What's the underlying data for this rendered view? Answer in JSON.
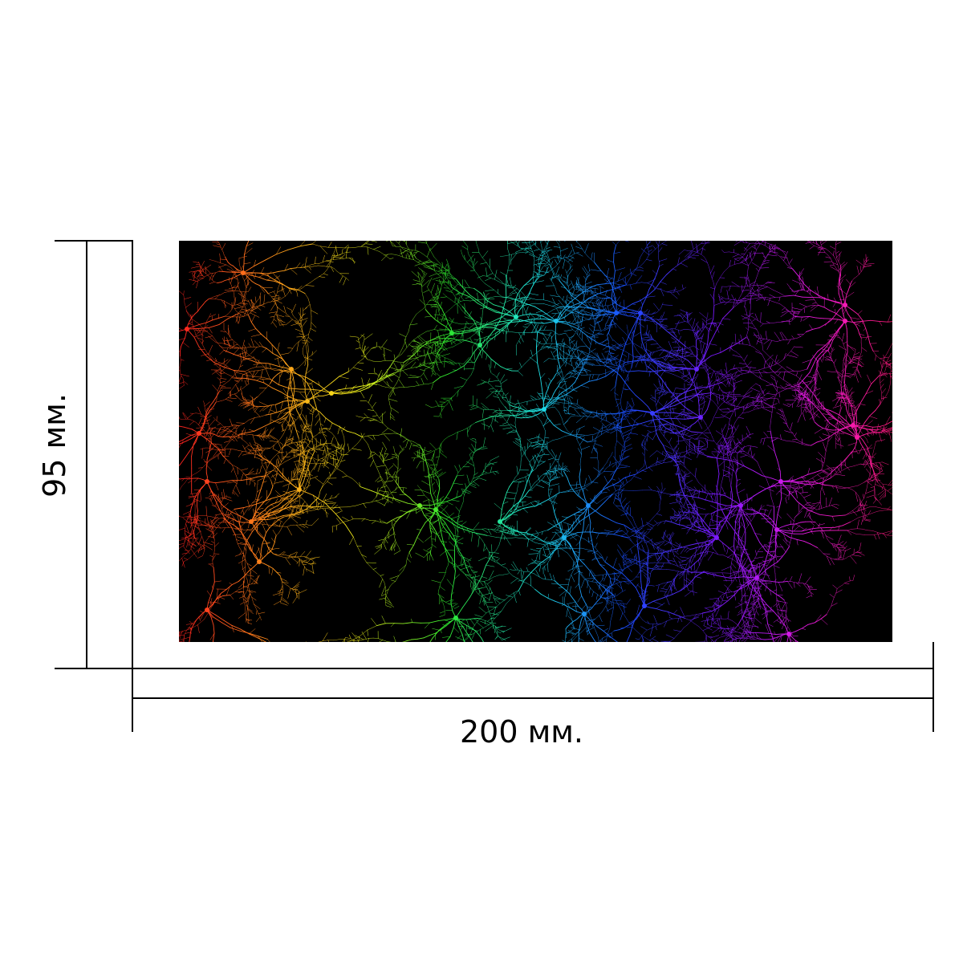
{
  "dimensions": {
    "width_label": "200 мм.",
    "height_label": "95 мм."
  },
  "artwork": {
    "subject": "neuron-network",
    "background": "#000000",
    "palette": [
      "#ff2020",
      "#ff8c1a",
      "#f2f21a",
      "#2ee62e",
      "#1fe6e6",
      "#1a4dff",
      "#7a1aff",
      "#e61ae6",
      "#ff1a7a"
    ]
  }
}
